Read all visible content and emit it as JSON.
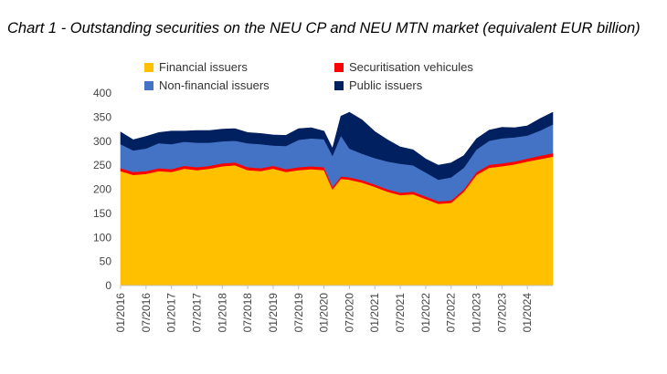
{
  "title": "Chart 1 - Outstanding securities on the NEU CP and NEU MTN market (equivalent EUR billion)",
  "legend": [
    {
      "label": "Financial issuers",
      "color": "#FFC000"
    },
    {
      "label": "Securitisation vehicules",
      "color": "#FF0000"
    },
    {
      "label": "Non-financial issuers",
      "color": "#4472C4"
    },
    {
      "label": "Public issuers",
      "color": "#002060"
    }
  ],
  "chart_data": {
    "type": "area",
    "stacked": true,
    "title": "Chart 1 - Outstanding securities on the NEU CP and NEU MTN market (equivalent EUR billion)",
    "ylim": [
      0,
      400
    ],
    "yticks": [
      0,
      50,
      100,
      150,
      200,
      250,
      300,
      350,
      400
    ],
    "x_tick_labels": [
      "01/2016",
      "07/2016",
      "01/2017",
      "07/2017",
      "01/2018",
      "07/2018",
      "01/2019",
      "07/2019",
      "01/2020",
      "07/2020",
      "01/2021",
      "07/2021",
      "01/2022",
      "07/2022",
      "01/2023",
      "07/2023",
      "01/2024"
    ],
    "x_range": [
      "01/2016",
      "07/2024"
    ],
    "grid": false,
    "legend_position": "top",
    "x": [
      "01/2016",
      "04/2016",
      "07/2016",
      "10/2016",
      "01/2017",
      "04/2017",
      "07/2017",
      "10/2017",
      "01/2018",
      "04/2018",
      "07/2018",
      "10/2018",
      "01/2019",
      "04/2019",
      "07/2019",
      "10/2019",
      "01/2020",
      "03/2020",
      "05/2020",
      "07/2020",
      "10/2020",
      "01/2021",
      "04/2021",
      "07/2021",
      "10/2021",
      "01/2022",
      "04/2022",
      "07/2022",
      "10/2022",
      "01/2023",
      "04/2023",
      "07/2023",
      "10/2023",
      "01/2024",
      "04/2024",
      "07/2024"
    ],
    "series": [
      {
        "name": "Financial issuers",
        "color": "#FFC000",
        "values": [
          238,
          230,
          232,
          238,
          236,
          243,
          240,
          243,
          248,
          250,
          240,
          238,
          243,
          236,
          240,
          242,
          240,
          200,
          222,
          220,
          214,
          205,
          195,
          188,
          190,
          180,
          170,
          172,
          195,
          230,
          245,
          248,
          252,
          258,
          263,
          268
        ]
      },
      {
        "name": "Securitisation vehicules",
        "color": "#FF0000",
        "values": [
          6,
          6,
          6,
          6,
          6,
          6,
          6,
          6,
          6,
          6,
          6,
          6,
          6,
          6,
          6,
          6,
          6,
          5,
          5,
          5,
          5,
          5,
          5,
          5,
          5,
          5,
          5,
          5,
          5,
          6,
          6,
          6,
          6,
          6,
          7,
          7
        ]
      },
      {
        "name": "Non-financial issuers",
        "color": "#4472C4",
        "values": [
          50,
          45,
          47,
          52,
          52,
          50,
          51,
          48,
          46,
          45,
          50,
          50,
          42,
          48,
          57,
          58,
          58,
          65,
          85,
          60,
          55,
          55,
          58,
          60,
          55,
          50,
          45,
          48,
          45,
          47,
          50,
          52,
          50,
          48,
          52,
          60
        ]
      },
      {
        "name": "Public issuers",
        "color": "#002060",
        "values": [
          25,
          22,
          25,
          22,
          27,
          22,
          25,
          25,
          25,
          25,
          22,
          22,
          22,
          22,
          23,
          22,
          17,
          15,
          40,
          75,
          70,
          55,
          45,
          35,
          32,
          28,
          30,
          30,
          25,
          22,
          22,
          23,
          20,
          20,
          25,
          25
        ]
      }
    ]
  }
}
